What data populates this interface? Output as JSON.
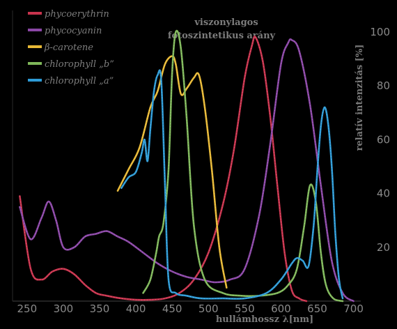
{
  "chart_data": {
    "type": "line",
    "title": "viszonylagos",
    "subtitle": "fotoszintetikus arány",
    "xlabel": "hullámhossz λ[nm]",
    "ylabel": "relatív intenzitás [%]",
    "xlim": [
      230,
      710
    ],
    "ylim": [
      0,
      108
    ],
    "xticks": [
      250,
      300,
      350,
      400,
      450,
      500,
      550,
      600,
      650,
      700
    ],
    "yticks": [
      20,
      40,
      60,
      80,
      100
    ],
    "legend_position": "top-left",
    "grid": false,
    "series": [
      {
        "name": "phycoerythrin",
        "color": "#c8334d",
        "x": [
          240,
          255,
          270,
          285,
          300,
          315,
          330,
          345,
          360,
          380,
          400,
          420,
          440,
          460,
          480,
          500,
          520,
          535,
          550,
          560,
          565,
          575,
          585,
          595,
          605,
          615,
          625,
          635
        ],
        "y": [
          39,
          12,
          8,
          11,
          12,
          10,
          6,
          3,
          2,
          1,
          0.5,
          0.5,
          1,
          3,
          8,
          18,
          36,
          56,
          83,
          95,
          98,
          89,
          69,
          43,
          18,
          4,
          1,
          0
        ]
      },
      {
        "name": "phycocyanin",
        "color": "#8b47a6",
        "x": [
          240,
          255,
          270,
          280,
          290,
          300,
          315,
          330,
          345,
          360,
          375,
          390,
          410,
          430,
          450,
          470,
          490,
          510,
          530,
          550,
          570,
          585,
          600,
          610,
          615,
          625,
          640,
          655,
          670,
          685,
          700
        ],
        "y": [
          35,
          23,
          31,
          37,
          30,
          20,
          20,
          24,
          25,
          26,
          24,
          22,
          18,
          14,
          11,
          9,
          8,
          7,
          8,
          12,
          32,
          58,
          88,
          96,
          97,
          93,
          73,
          43,
          15,
          3,
          0
        ]
      },
      {
        "name": "β-carotene",
        "color": "#e8b936",
        "x": [
          375,
          390,
          405,
          420,
          430,
          440,
          450,
          455,
          462,
          470,
          480,
          487,
          495,
          505,
          515,
          525
        ],
        "y": [
          41,
          49,
          57,
          72,
          78,
          88,
          91,
          88,
          77,
          79,
          83,
          84,
          72,
          48,
          20,
          5
        ]
      },
      {
        "name": "chlorophyll „b”",
        "color": "#7fb75a",
        "x": [
          410,
          420,
          428,
          432,
          438,
          445,
          450,
          455,
          462,
          470,
          480,
          495,
          520,
          545,
          570,
          595,
          610,
          622,
          632,
          640,
          648,
          655,
          662,
          672,
          685
        ],
        "y": [
          3,
          8,
          18,
          24,
          29,
          49,
          85,
          100,
          94,
          68,
          28,
          8,
          3,
          2,
          2,
          3,
          6,
          12,
          28,
          43,
          37,
          18,
          6,
          1,
          0
        ]
      },
      {
        "name": "chlorophyll „a”",
        "color": "#2e9bd6",
        "x": [
          380,
          390,
          400,
          408,
          412,
          416,
          420,
          425,
          430,
          435,
          440,
          445,
          455,
          470,
          490,
          520,
          550,
          580,
          600,
          615,
          622,
          630,
          638,
          645,
          650,
          655,
          660,
          665,
          670,
          675,
          680,
          685
        ],
        "y": [
          42,
          46,
          48,
          55,
          60,
          52,
          64,
          78,
          84,
          82,
          44,
          8,
          3,
          2,
          1,
          1,
          1,
          3,
          8,
          14,
          16,
          15,
          13,
          28,
          48,
          65,
          72,
          66,
          50,
          25,
          8,
          1
        ]
      }
    ]
  }
}
